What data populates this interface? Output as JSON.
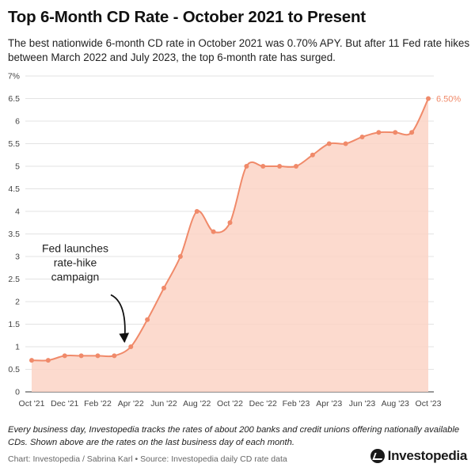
{
  "header": {
    "title": "Top 6-Month CD Rate - October 2021 to Present",
    "subtitle": "The best nationwide 6-month CD rate in October 2021 was 0.70% APY. But after 11 Fed rate hikes between March 2022 and July 2023, the top 6-month rate has surged."
  },
  "chart_data": {
    "type": "area",
    "x": [
      "Oct '21",
      "Nov '21",
      "Dec '21",
      "Jan '22",
      "Feb '22",
      "Mar '22",
      "Apr '22",
      "May '22",
      "Jun '22",
      "Jul '22",
      "Aug '22",
      "Sep '22",
      "Oct '22",
      "Nov '22",
      "Dec '22",
      "Jan '23",
      "Feb '23",
      "Mar '23",
      "Apr '23",
      "May '23",
      "Jun '23",
      "Jul '23",
      "Aug '23",
      "Sep '23",
      "Oct '23"
    ],
    "values": [
      0.7,
      0.7,
      0.8,
      0.8,
      0.8,
      0.8,
      1.0,
      1.6,
      2.3,
      3.0,
      4.0,
      3.55,
      3.75,
      5.0,
      5.0,
      5.0,
      5.0,
      5.25,
      5.5,
      5.5,
      5.65,
      5.75,
      5.75,
      5.75,
      6.5
    ],
    "x_tick_labels": [
      "Oct '21",
      "Dec '21",
      "Feb '22",
      "Apr '22",
      "Jun '22",
      "Aug '22",
      "Oct '22",
      "Dec '22",
      "Feb '23",
      "Apr '23",
      "Jun '23",
      "Aug '23",
      "Oct '23"
    ],
    "y_tick_labels": [
      "0",
      "0.5",
      "1",
      "1.5",
      "2",
      "2.5",
      "3",
      "3.5",
      "4",
      "4.5",
      "5",
      "5.5",
      "6",
      "6.5",
      "7%"
    ],
    "ylim": [
      0,
      7
    ],
    "grid": true,
    "end_label": "6.50%",
    "annotation": {
      "lines": [
        "Fed launches",
        "rate-hike",
        "campaign"
      ],
      "points_to": "Apr '22"
    },
    "colors": {
      "line": "#f08a6a",
      "fill": "#fbd3c5",
      "marker": "#f08a6a",
      "label": "#f08a6a"
    }
  },
  "footer": {
    "note": "Every business day, Investopedia tracks the rates of about 200 banks and credit unions offering nationally available CDs. Shown above are the rates on the last business day of each month.",
    "credit": "Chart: Investopedia / Sabrina Karl • Source: Investopedia daily CD rate data",
    "brand": "Investopedia"
  }
}
